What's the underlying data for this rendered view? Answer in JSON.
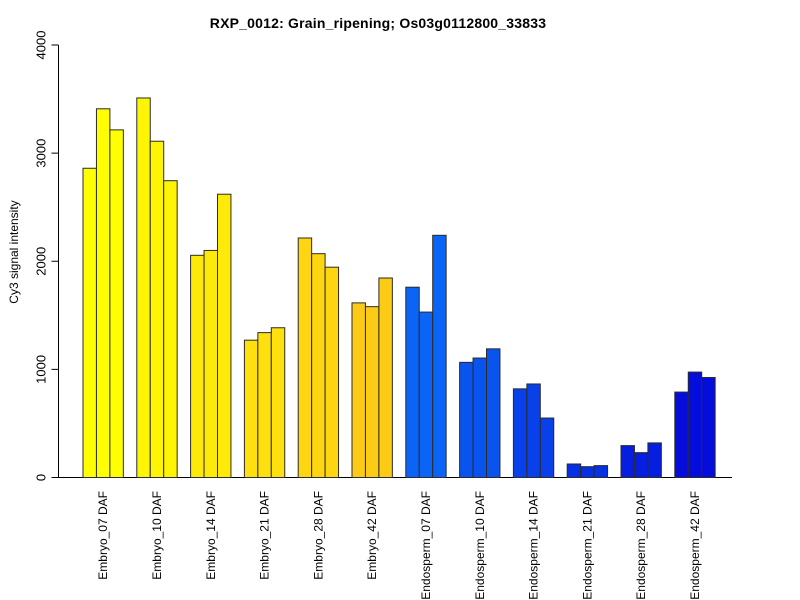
{
  "chart_data": {
    "type": "bar",
    "title": "RXP_0012: Grain_ripening; Os03g0112800_33833",
    "ylabel": "Cy3 signal intensity",
    "xlabel": "",
    "ylim": [
      0,
      4000
    ],
    "yticks": [
      0,
      1000,
      2000,
      3000,
      4000
    ],
    "grid": false,
    "legend": null,
    "axis_color": "#000000",
    "bar_border_color": "#2b2b2b",
    "groups": [
      {
        "label": "Embryo_07 DAF",
        "color": "#FFFF00",
        "values": [
          2860,
          3410,
          3215
        ]
      },
      {
        "label": "Embryo_10 DAF",
        "color": "#FEF504",
        "values": [
          3510,
          3110,
          2745
        ]
      },
      {
        "label": "Embryo_14 DAF",
        "color": "#FEEA08",
        "values": [
          2055,
          2100,
          2620
        ]
      },
      {
        "label": "Embryo_21 DAF",
        "color": "#FDE00D",
        "values": [
          1270,
          1340,
          1385
        ]
      },
      {
        "label": "Embryo_28 DAF",
        "color": "#FDD511",
        "values": [
          2215,
          2070,
          1945
        ]
      },
      {
        "label": "Embryo_42 DAF",
        "color": "#FCCB16",
        "values": [
          1615,
          1580,
          1845
        ]
      },
      {
        "label": "Endosperm_07 DAF",
        "color": "#0A64F5",
        "values": [
          1760,
          1530,
          2240
        ]
      },
      {
        "label": "Endosperm_10 DAF",
        "color": "#0953EF",
        "values": [
          1065,
          1105,
          1190
        ]
      },
      {
        "label": "Endosperm_14 DAF",
        "color": "#0841EA",
        "values": [
          820,
          865,
          550
        ]
      },
      {
        "label": "Endosperm_21 DAF",
        "color": "#0630E4",
        "values": [
          125,
          100,
          110
        ]
      },
      {
        "label": "Endosperm_28 DAF",
        "color": "#051EDF",
        "values": [
          295,
          230,
          320
        ]
      },
      {
        "label": "Endosperm_42 DAF",
        "color": "#040DD9",
        "values": [
          790,
          975,
          925
        ]
      }
    ]
  }
}
